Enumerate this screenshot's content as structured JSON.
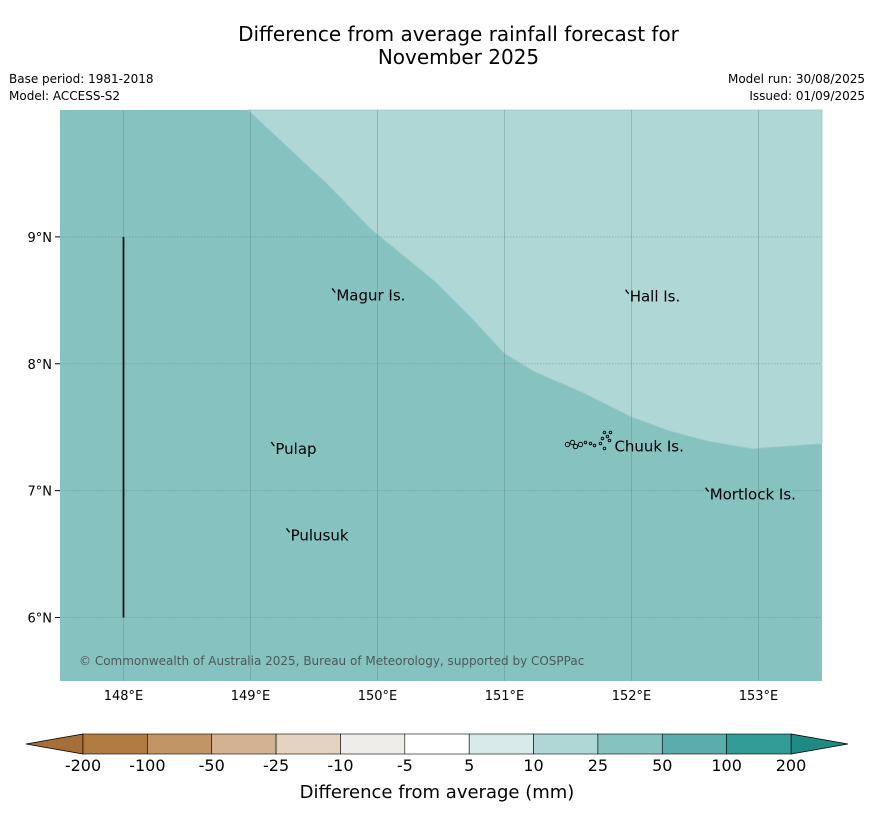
{
  "header": {
    "title_line1": "Difference from average rainfall forecast for",
    "title_line2": "November 2025",
    "base_period": "Base period: 1981-2018",
    "model": "Model: ACCESS-S2",
    "model_run": "Model run: 30/08/2025",
    "issued": "Issued: 01/09/2025"
  },
  "map": {
    "lon_range": [
      147.5,
      153.5
    ],
    "lat_range": [
      5.5,
      10.0
    ],
    "lon_ticks": [
      {
        "value": 148,
        "label": "148°E"
      },
      {
        "value": 149,
        "label": "149°E"
      },
      {
        "value": 150,
        "label": "150°E"
      },
      {
        "value": 151,
        "label": "151°E"
      },
      {
        "value": 152,
        "label": "152°E"
      },
      {
        "value": 153,
        "label": "153°E"
      }
    ],
    "lat_ticks": [
      {
        "value": 9,
        "label": "9°N"
      },
      {
        "value": 8,
        "label": "8°N"
      },
      {
        "value": 7,
        "label": "7°N"
      },
      {
        "value": 6,
        "label": "6°N"
      }
    ],
    "fill_colors": {
      "category_25_50": "#85c2c0",
      "category_10_25": "#afd7d6",
      "gridline": "#5f8f8d",
      "accent_line": "#111111"
    },
    "contour_boundary_25mm": [
      [
        148.98,
        10.0
      ],
      [
        149.3,
        9.7
      ],
      [
        149.6,
        9.42
      ],
      [
        149.95,
        9.06
      ],
      [
        150.45,
        8.65
      ],
      [
        150.75,
        8.35
      ],
      [
        151.0,
        8.08
      ],
      [
        151.25,
        7.93
      ],
      [
        151.6,
        7.78
      ],
      [
        152.0,
        7.58
      ],
      [
        152.3,
        7.47
      ],
      [
        152.6,
        7.39
      ],
      [
        152.95,
        7.33
      ],
      [
        153.5,
        7.37
      ]
    ],
    "vertical_line": {
      "lon": 148.0,
      "lat_from": 6.0,
      "lat_to": 9.0
    },
    "islands": [
      {
        "name": "Magur Is.",
        "lon": 149.66,
        "lat": 8.57
      },
      {
        "name": "Hall Is.",
        "lon": 151.97,
        "lat": 8.56
      },
      {
        "name": "Pulap",
        "lon": 149.18,
        "lat": 7.36
      },
      {
        "name": "Chuuk Is.",
        "lon": 151.85,
        "lat": 7.38
      },
      {
        "name": "Mortlock Is.",
        "lon": 152.6,
        "lat": 7.0
      },
      {
        "name": "Pulusuk",
        "lon": 149.3,
        "lat": 6.68
      }
    ],
    "copyright": "© Commonwealth of Australia 2025, Bureau of Meteorology, supported by COSPPac"
  },
  "colorbar": {
    "label": "Difference from average (mm)",
    "low_extend_color": "#a66f37",
    "high_extend_color": "#1e8a84",
    "bins": [
      {
        "color": "#b07a40"
      },
      {
        "color": "#c39465"
      },
      {
        "color": "#d2b291"
      },
      {
        "color": "#e4d2c0"
      },
      {
        "color": "#efedea"
      },
      {
        "color": "#ffffff"
      },
      {
        "color": "#d8ebea"
      },
      {
        "color": "#afd7d6"
      },
      {
        "color": "#85c2c0"
      },
      {
        "color": "#5aadaa"
      },
      {
        "color": "#339b96"
      }
    ],
    "ticks": [
      "-200",
      "-100",
      "-50",
      "-25",
      "-10",
      "-5",
      "5",
      "10",
      "25",
      "50",
      "100",
      "200"
    ]
  }
}
